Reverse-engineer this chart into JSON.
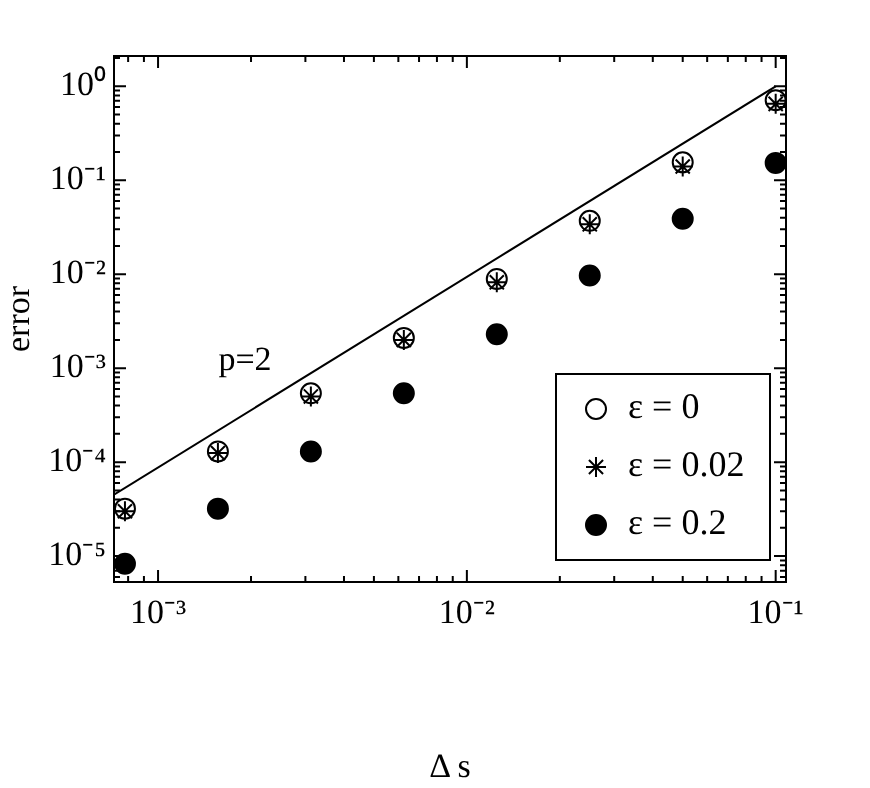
{
  "chart_data": {
    "type": "scatter",
    "xlabel": "Δ s",
    "ylabel": "error",
    "log": "xy",
    "grid": false,
    "legend": "bottom right",
    "xlim": [
      0.00072,
      0.108
    ],
    "ylim": [
      5.3e-06,
      2.1
    ],
    "xticks": [
      {
        "value": 0.001,
        "label": "10⁻³"
      },
      {
        "value": 0.01,
        "label": "10⁻²"
      },
      {
        "value": 0.1,
        "label": "10⁻¹"
      }
    ],
    "yticks": [
      {
        "value": 1e-05,
        "label": "10⁻⁵"
      },
      {
        "value": 0.0001,
        "label": "10⁻⁴"
      },
      {
        "value": 0.001,
        "label": "10⁻³"
      },
      {
        "value": 0.01,
        "label": "10⁻²"
      },
      {
        "value": 0.1,
        "label": "10⁻¹"
      },
      {
        "value": 1,
        "label": "10⁰"
      }
    ],
    "x": [
      0.1,
      0.05,
      0.025,
      0.0125,
      0.00625,
      0.003125,
      0.0015625,
      0.00078125
    ],
    "series": [
      {
        "name": "ε = 0",
        "color": "#ffffff",
        "marker": "circle",
        "values": [
          0.71,
          0.155,
          0.037,
          0.0089,
          0.0021,
          0.00054,
          0.00013,
          3.2e-05
        ]
      },
      {
        "name": "ε = 0.02",
        "color": "#000000",
        "marker": "cross",
        "values": [
          0.65,
          0.14,
          0.034,
          0.0082,
          0.002,
          0.0005,
          0.000125,
          3e-05
        ]
      },
      {
        "name": "ε = 0.2",
        "color": "#000000",
        "marker": "circle",
        "values": [
          0.153,
          0.039,
          0.0097,
          0.0023,
          0.00054,
          0.00013,
          3.2e-05,
          8.3e-06
        ]
      },
      {
        "type": "line",
        "color": "#000000",
        "marker": "none",
        "x": [
          0.00072,
          0.1
        ],
        "values": [
          4.5e-05,
          1.0
        ]
      }
    ],
    "annotations": [
      "p=2"
    ]
  }
}
